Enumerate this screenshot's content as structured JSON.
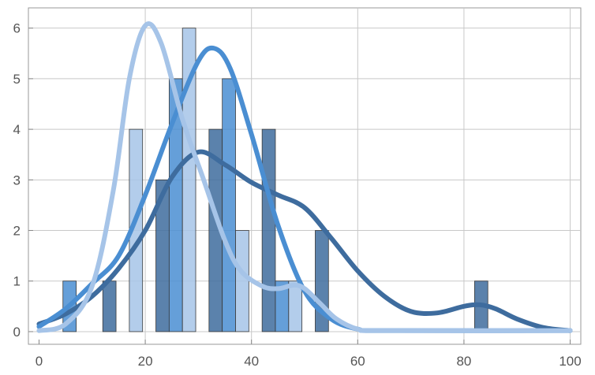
{
  "chart_data": {
    "type": "bar",
    "title": "",
    "xlabel": "",
    "ylabel": "",
    "xlim": [
      -2,
      102
    ],
    "ylim": [
      -0.25,
      6.4
    ],
    "xticks": [
      0,
      20,
      40,
      60,
      80,
      100
    ],
    "yticks": [
      0,
      1,
      2,
      3,
      4,
      5,
      6
    ],
    "grid": true,
    "series": [
      {
        "color": "#3e6c9e",
        "bars": [
          {
            "x0": 12,
            "x1": 14.5,
            "value": 1
          },
          {
            "x0": 22,
            "x1": 24.5,
            "value": 3
          },
          {
            "x0": 32,
            "x1": 34.5,
            "value": 4
          },
          {
            "x0": 42,
            "x1": 44.5,
            "value": 4
          },
          {
            "x0": 52,
            "x1": 54.5,
            "value": 2
          },
          {
            "x0": 82,
            "x1": 84.5,
            "value": 1
          }
        ],
        "curve": [
          [
            0,
            0.15
          ],
          [
            5,
            0.35
          ],
          [
            10,
            0.7
          ],
          [
            15,
            1.25
          ],
          [
            20,
            2.0
          ],
          [
            25,
            3.05
          ],
          [
            30,
            3.55
          ],
          [
            35,
            3.3
          ],
          [
            40,
            2.95
          ],
          [
            45,
            2.7
          ],
          [
            50,
            2.45
          ],
          [
            55,
            1.85
          ],
          [
            60,
            1.2
          ],
          [
            65,
            0.7
          ],
          [
            70,
            0.4
          ],
          [
            75,
            0.37
          ],
          [
            80,
            0.5
          ],
          [
            83,
            0.53
          ],
          [
            86,
            0.45
          ],
          [
            90,
            0.25
          ],
          [
            95,
            0.08
          ],
          [
            100,
            0.02
          ]
        ]
      },
      {
        "color": "#4a8ed2",
        "bars": [
          {
            "x0": 4.5,
            "x1": 7,
            "value": 1
          },
          {
            "x0": 24.5,
            "x1": 27,
            "value": 5
          },
          {
            "x0": 34.5,
            "x1": 37,
            "value": 5
          },
          {
            "x0": 44.5,
            "x1": 47,
            "value": 1
          }
        ],
        "curve": [
          [
            0,
            0.1
          ],
          [
            5,
            0.45
          ],
          [
            10,
            0.95
          ],
          [
            15,
            1.5
          ],
          [
            20,
            2.7
          ],
          [
            25,
            4.1
          ],
          [
            30,
            5.35
          ],
          [
            33,
            5.6
          ],
          [
            36,
            5.2
          ],
          [
            40,
            3.9
          ],
          [
            45,
            2.1
          ],
          [
            50,
            0.8
          ],
          [
            55,
            0.25
          ],
          [
            60,
            0.05
          ],
          [
            65,
            0.02
          ],
          [
            100,
            0.02
          ]
        ]
      },
      {
        "color": "#a6c4e8",
        "bars": [
          {
            "x0": 17,
            "x1": 19.5,
            "value": 4
          },
          {
            "x0": 27,
            "x1": 29.5,
            "value": 6
          },
          {
            "x0": 37,
            "x1": 39.5,
            "value": 2
          },
          {
            "x0": 47,
            "x1": 49.5,
            "value": 1
          }
        ],
        "curve": [
          [
            0,
            0.02
          ],
          [
            5,
            0.15
          ],
          [
            10,
            0.9
          ],
          [
            14,
            2.8
          ],
          [
            17,
            5.0
          ],
          [
            20,
            6.05
          ],
          [
            23,
            5.7
          ],
          [
            27,
            4.2
          ],
          [
            31,
            3.0
          ],
          [
            35,
            1.8
          ],
          [
            38,
            1.2
          ],
          [
            42,
            0.9
          ],
          [
            45,
            0.85
          ],
          [
            48,
            0.92
          ],
          [
            50,
            0.85
          ],
          [
            53,
            0.55
          ],
          [
            56,
            0.25
          ],
          [
            60,
            0.05
          ],
          [
            65,
            0.02
          ],
          [
            100,
            0.02
          ]
        ]
      }
    ]
  }
}
